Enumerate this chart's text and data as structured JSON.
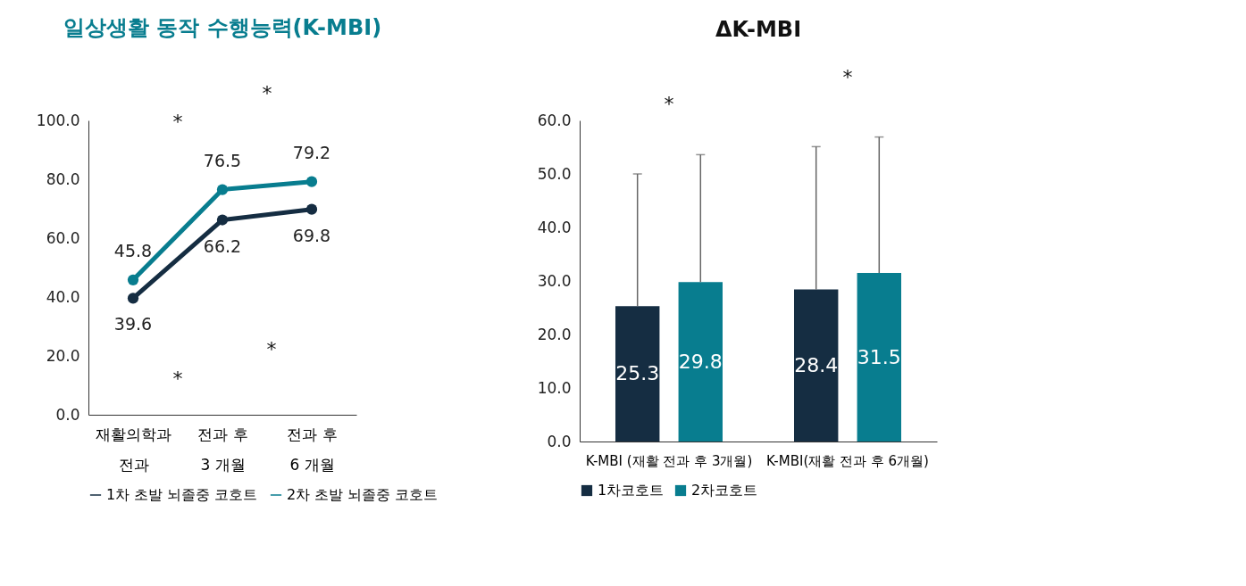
{
  "chart_data": [
    {
      "type": "line",
      "title": "일상생활 동작 수행능력(K-MBI)",
      "categories": [
        "재활의학과\n전과",
        "전과 후\n3 개월",
        "전과 후\n6 개월"
      ],
      "series": [
        {
          "name": "1차 초발 뇌졸중 코호트",
          "color": "#152d42",
          "values": [
            39.6,
            66.2,
            69.8
          ]
        },
        {
          "name": "2차 초발 뇌졸중 코호트",
          "color": "#087d8f",
          "values": [
            45.8,
            76.5,
            79.2
          ]
        }
      ],
      "ylim": [
        0,
        100
      ],
      "yticks": [
        {
          "value": 0,
          "label": "0.0"
        },
        {
          "value": 20,
          "label": "20.0"
        },
        {
          "value": 40,
          "label": "40.0"
        },
        {
          "value": 60,
          "label": "60.0"
        },
        {
          "value": 80,
          "label": "80.0"
        },
        {
          "value": 100,
          "label": "100.0"
        }
      ],
      "data_labels": true,
      "marker": "circle",
      "line_style": "solid",
      "grid": false,
      "legend": "bottom",
      "annotations": [
        "*",
        "*",
        "*",
        "*"
      ]
    },
    {
      "type": "bar",
      "title": "ΔK-MBI",
      "categories": [
        "K-MBI (재활 전과 후 3개월)",
        "K-MBI(재활 전과 후 6개월)"
      ],
      "series": [
        {
          "name": "1차코호트",
          "color": "#152d42",
          "values": [
            25.3,
            28.4
          ],
          "errors": [
            [
              25.3,
              50.0
            ],
            [
              28.4,
              55.1
            ]
          ]
        },
        {
          "name": "2차코호트",
          "color": "#087d8f",
          "values": [
            29.8,
            31.5
          ],
          "errors": [
            [
              29.8,
              53.6
            ],
            [
              31.5,
              56.9
            ]
          ]
        }
      ],
      "ylim": [
        0,
        60
      ],
      "yticks": [
        {
          "value": 0,
          "label": "0.0"
        },
        {
          "value": 10,
          "label": "10.0"
        },
        {
          "value": 20,
          "label": "20.0"
        },
        {
          "value": 30,
          "label": "30.0"
        },
        {
          "value": 40,
          "label": "40.0"
        },
        {
          "value": 50,
          "label": "50.0"
        },
        {
          "value": 60,
          "label": "60.0"
        }
      ],
      "data_labels": true,
      "grid": false,
      "legend": "bottom",
      "annotations": [
        "*",
        "*"
      ]
    }
  ]
}
